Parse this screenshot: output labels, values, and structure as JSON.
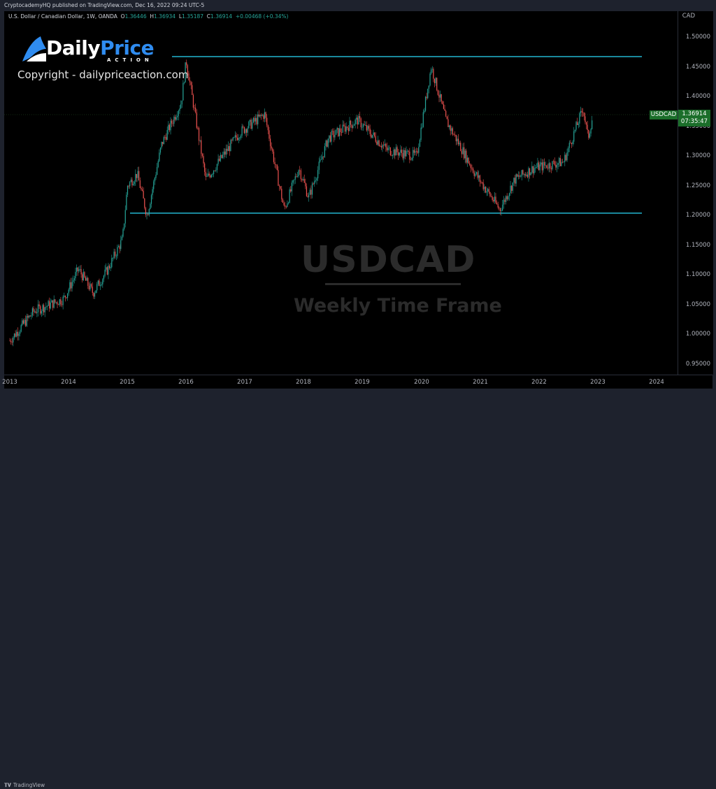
{
  "header": {
    "publisher_line": "CryptocademyHQ published on TradingView.com, Dec 16, 2022 09:24 UTC-5"
  },
  "legend": {
    "symbol_desc": "U.S. Dollar / Canadian Dollar, 1W, OANDA",
    "open_label": "O",
    "open": "1.36446",
    "high_label": "H",
    "high": "1.36934",
    "low_label": "L",
    "low": "1.35187",
    "close_label": "C",
    "close": "1.36914",
    "change": "+0.00468 (+0.34%)"
  },
  "branding": {
    "logo_word_1": "Daily",
    "logo_word_2": "Price",
    "logo_sub": "ACTION",
    "copyright": "Copyright - dailypriceaction.com"
  },
  "watermark": {
    "title": "USDCAD",
    "subtitle": "Weekly Time Frame"
  },
  "price_axis": {
    "currency": "CAD",
    "ticks": [
      "1.50000",
      "1.45000",
      "1.40000",
      "1.35000",
      "1.30000",
      "1.25000",
      "1.20000",
      "1.15000",
      "1.10000",
      "1.05000",
      "1.00000",
      "0.95000"
    ]
  },
  "time_axis": {
    "ticks": [
      "2013",
      "2014",
      "2015",
      "2016",
      "2017",
      "2018",
      "2019",
      "2020",
      "2021",
      "2022",
      "2023",
      "2024"
    ]
  },
  "current_price": {
    "symbol": "USDCAD",
    "price": "1.36914",
    "countdown": "07:35:47"
  },
  "footer": {
    "brand": "TradingView",
    "brand_icon": "tv-logo-icon"
  },
  "colors": {
    "up": "#26a69a",
    "down": "#ef5350",
    "level_line": "#22b5d0",
    "price_tag": "#1b6e2a",
    "background": "#000000",
    "frame": "#1e222d"
  },
  "chart_data": {
    "type": "candlestick",
    "title": "USDCAD Weekly Time Frame",
    "symbol": "USDCAD",
    "timeframe": "1W",
    "exchange": "OANDA",
    "xlabel": "",
    "ylabel": "CAD",
    "ylim": [
      0.93,
      1.52
    ],
    "grid": false,
    "x_ticks": [
      "2013",
      "2014",
      "2015",
      "2016",
      "2017",
      "2018",
      "2019",
      "2020",
      "2021",
      "2022",
      "2023",
      "2024"
    ],
    "y_ticks": [
      0.95,
      1.0,
      1.05,
      1.1,
      1.15,
      1.2,
      1.25,
      1.3,
      1.35,
      1.4,
      1.45,
      1.5
    ],
    "last_bar": {
      "open": 1.36446,
      "high": 1.36934,
      "low": 1.35187,
      "close": 1.36914,
      "change": 0.00468,
      "change_pct": 0.34
    },
    "horizontal_levels": [
      {
        "name": "resistance",
        "price": 1.467,
        "from": "2016-01",
        "to": "2023-10"
      },
      {
        "name": "support",
        "price": 1.204,
        "from": "2015-01",
        "to": "2023-10"
      }
    ],
    "close_path": [
      {
        "t": "2013-01",
        "close": 0.99
      },
      {
        "t": "2013-06",
        "close": 1.04
      },
      {
        "t": "2013-12",
        "close": 1.06
      },
      {
        "t": "2014-03",
        "close": 1.11
      },
      {
        "t": "2014-06",
        "close": 1.07
      },
      {
        "t": "2014-09",
        "close": 1.11
      },
      {
        "t": "2014-12",
        "close": 1.16
      },
      {
        "t": "2015-01",
        "close": 1.25
      },
      {
        "t": "2015-03",
        "close": 1.27
      },
      {
        "t": "2015-05",
        "close": 1.2
      },
      {
        "t": "2015-08",
        "close": 1.32
      },
      {
        "t": "2015-12",
        "close": 1.39
      },
      {
        "t": "2016-01",
        "close": 1.46
      },
      {
        "t": "2016-05",
        "close": 1.26
      },
      {
        "t": "2016-12",
        "close": 1.34
      },
      {
        "t": "2017-05",
        "close": 1.37
      },
      {
        "t": "2017-09",
        "close": 1.21
      },
      {
        "t": "2017-12",
        "close": 1.28
      },
      {
        "t": "2018-02",
        "close": 1.23
      },
      {
        "t": "2018-06",
        "close": 1.33
      },
      {
        "t": "2018-12",
        "close": 1.36
      },
      {
        "t": "2019-06",
        "close": 1.31
      },
      {
        "t": "2019-12",
        "close": 1.3
      },
      {
        "t": "2020-03",
        "close": 1.45
      },
      {
        "t": "2020-06",
        "close": 1.36
      },
      {
        "t": "2020-12",
        "close": 1.27
      },
      {
        "t": "2021-05",
        "close": 1.21
      },
      {
        "t": "2021-08",
        "close": 1.26
      },
      {
        "t": "2021-12",
        "close": 1.28
      },
      {
        "t": "2022-06",
        "close": 1.29
      },
      {
        "t": "2022-10",
        "close": 1.38
      },
      {
        "t": "2022-11",
        "close": 1.33
      },
      {
        "t": "2022-12",
        "close": 1.369
      }
    ]
  }
}
